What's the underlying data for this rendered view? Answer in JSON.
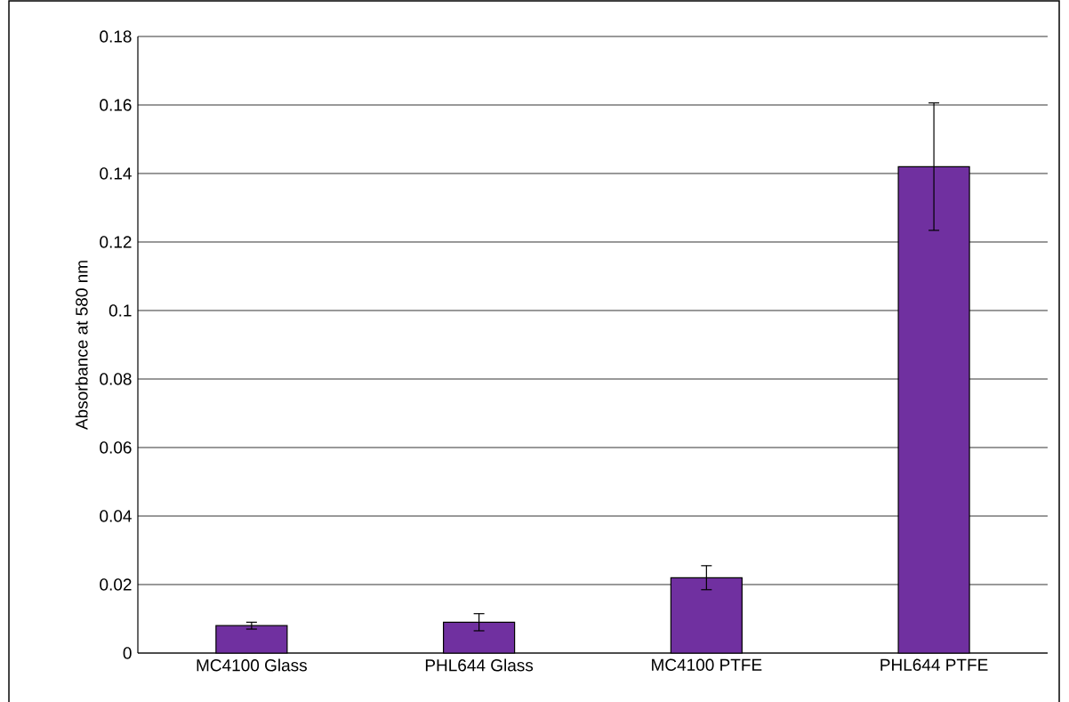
{
  "chart_data": {
    "type": "bar",
    "ylabel": "Absorbance at 580 nm",
    "categories": [
      "MC4100 Glass",
      "PHL644 Glass",
      "MC4100 PTFE",
      "PHL644 PTFE"
    ],
    "values": [
      0.008,
      0.009,
      0.022,
      0.142
    ],
    "errors": [
      0.001,
      0.0025,
      0.0035,
      0.0186
    ],
    "color": "#7030a0",
    "ylim": [
      0,
      0.18
    ],
    "yticks": [
      0,
      0.02,
      0.04,
      0.06,
      0.08,
      0.1,
      0.12,
      0.14,
      0.16,
      0.18
    ],
    "grid": "y"
  }
}
